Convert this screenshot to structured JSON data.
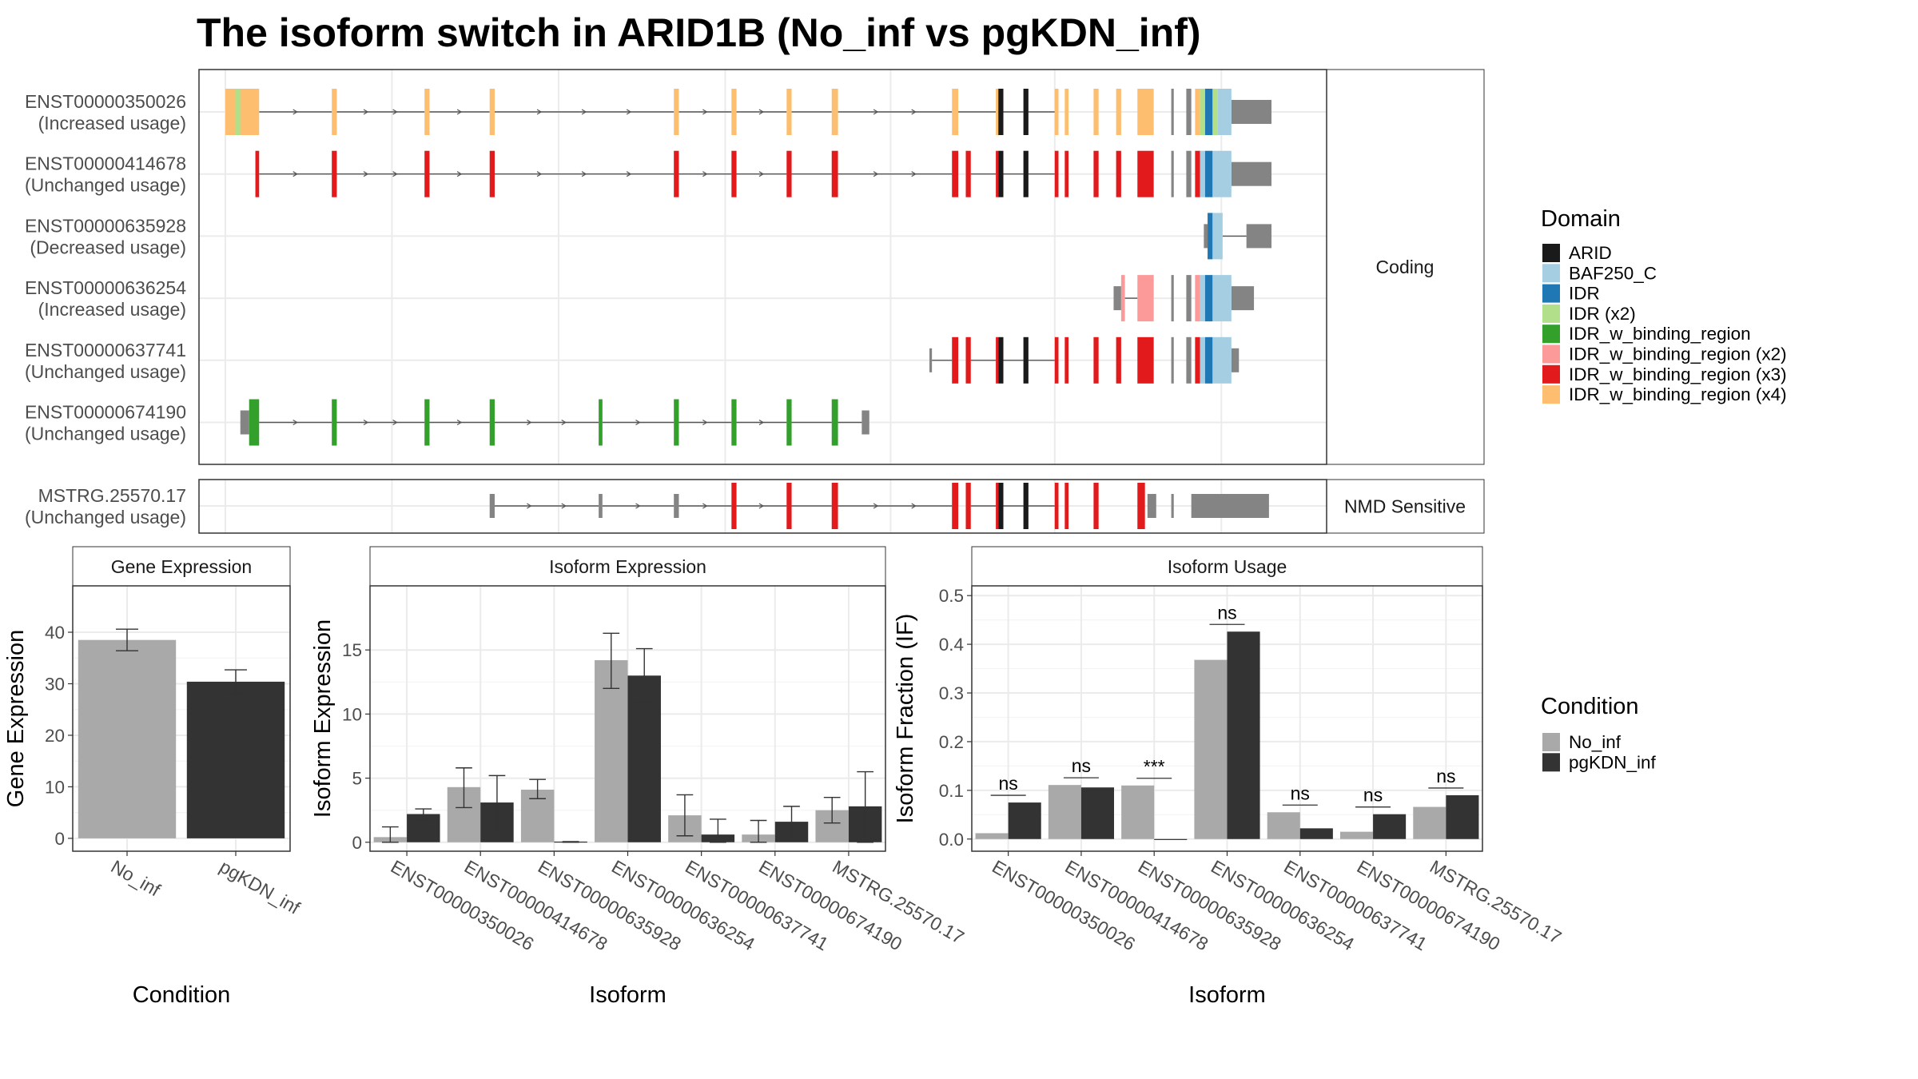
{
  "title": "The isoform switch in ARID1B (No_inf vs pgKDN_inf)",
  "colors": {
    "grid": "#ebebeb",
    "frame": "#333333",
    "strip_fill": "#ffffff",
    "utr": "#848484",
    "cond_no_inf": "#a9a9a9",
    "cond_pgkdn_inf": "#333333"
  },
  "chart_data": [
    {
      "type": "gene-structure",
      "panel_labels": [
        "Coding",
        "NMD Sensitive"
      ],
      "legend": {
        "title": "Domain",
        "items": [
          {
            "label": "ARID",
            "color": "#1a1a1a"
          },
          {
            "label": "BAF250_C",
            "color": "#a6cee3"
          },
          {
            "label": "IDR",
            "color": "#1f78b4"
          },
          {
            "label": "IDR (x2)",
            "color": "#b2df8a"
          },
          {
            "label": "IDR_w_binding_region",
            "color": "#33a02c"
          },
          {
            "label": "IDR_w_binding_region (x2)",
            "color": "#fb9a99"
          },
          {
            "label": "IDR_w_binding_region (x3)",
            "color": "#e31a1c"
          },
          {
            "label": "IDR_w_binding_region (x4)",
            "color": "#fdbf6f"
          }
        ]
      },
      "isoforms": [
        {
          "id": "ENST00000350026",
          "usage": "(Increased usage)",
          "panel": 0,
          "utr_exons": [
            [
              1004,
              1036
            ]
          ],
          "domain_exons": [
            [
              201,
              228,
              "#fdbf6f"
            ],
            [
              286,
              290,
              "#fdbf6f"
            ],
            [
              360,
              364,
              "#fdbf6f"
            ],
            [
              412,
              416,
              "#fdbf6f"
            ],
            [
              559,
              563,
              "#fdbf6f"
            ],
            [
              605,
              609,
              "#fdbf6f"
            ],
            [
              649,
              653,
              "#fdbf6f"
            ],
            [
              685,
              690,
              "#fdbf6f"
            ],
            [
              781,
              786,
              "#fdbf6f"
            ],
            [
              816,
              818,
              "#fdbf6f"
            ],
            [
              818,
              822,
              "#1a1a1a"
            ],
            [
              838,
              842,
              "#1a1a1a"
            ],
            [
              863,
              866,
              "#fdbf6f"
            ],
            [
              871,
              874,
              "#fdbf6f"
            ],
            [
              894,
              898,
              "#fdbf6f"
            ],
            [
              912,
              916,
              "#fdbf6f"
            ],
            [
              929,
              942,
              "#fdbf6f"
            ],
            [
              956,
              958,
              "#848484"
            ],
            [
              968,
              972,
              "#848484"
            ],
            [
              975,
              979,
              "#fdbf6f"
            ],
            [
              979,
              983,
              "#b2df8a"
            ],
            [
              983,
              989,
              "#1f78b4"
            ],
            [
              989,
              993,
              "#b2df8a"
            ],
            [
              993,
              1004,
              "#a6cee3"
            ],
            [
              209,
              213,
              "#b2df8a"
            ]
          ],
          "introns": [
            [
              228,
              286
            ],
            [
              290,
              360
            ],
            [
              364,
              412
            ],
            [
              416,
              559
            ],
            [
              563,
              605
            ],
            [
              609,
              649
            ],
            [
              653,
              685
            ],
            [
              690,
              781
            ],
            [
              786,
              816
            ],
            [
              822,
              838
            ],
            [
              842,
              863
            ]
          ]
        },
        {
          "id": "ENST00000414678",
          "usage": "(Unchanged usage)",
          "panel": 0,
          "utr_exons": [
            [
              1004,
              1036
            ]
          ],
          "domain_exons": [
            [
              225,
              228,
              "#e31a1c"
            ],
            [
              286,
              290,
              "#e31a1c"
            ],
            [
              360,
              364,
              "#e31a1c"
            ],
            [
              412,
              416,
              "#e31a1c"
            ],
            [
              559,
              563,
              "#e31a1c"
            ],
            [
              605,
              609,
              "#e31a1c"
            ],
            [
              649,
              653,
              "#e31a1c"
            ],
            [
              685,
              690,
              "#e31a1c"
            ],
            [
              781,
              786,
              "#e31a1c"
            ],
            [
              792,
              796,
              "#e31a1c"
            ],
            [
              816,
              818,
              "#e31a1c"
            ],
            [
              818,
              822,
              "#1a1a1a"
            ],
            [
              838,
              842,
              "#1a1a1a"
            ],
            [
              863,
              866,
              "#e31a1c"
            ],
            [
              871,
              874,
              "#e31a1c"
            ],
            [
              894,
              898,
              "#e31a1c"
            ],
            [
              912,
              916,
              "#e31a1c"
            ],
            [
              929,
              942,
              "#e31a1c"
            ],
            [
              956,
              958,
              "#848484"
            ],
            [
              968,
              972,
              "#848484"
            ],
            [
              975,
              979,
              "#e31a1c"
            ],
            [
              979,
              983,
              "#a6cee3"
            ],
            [
              983,
              989,
              "#1f78b4"
            ],
            [
              989,
              1004,
              "#a6cee3"
            ]
          ],
          "introns": [
            [
              228,
              286
            ],
            [
              290,
              360
            ],
            [
              364,
              412
            ],
            [
              416,
              559
            ],
            [
              563,
              605
            ],
            [
              609,
              649
            ],
            [
              653,
              685
            ],
            [
              690,
              781
            ],
            [
              796,
              816
            ],
            [
              822,
              838
            ],
            [
              842,
              863
            ]
          ]
        },
        {
          "id": "ENST00000635928",
          "usage": "(Decreased usage)",
          "panel": 0,
          "utr_exons": [
            [
              982,
              985
            ],
            [
              1016,
              1036
            ]
          ],
          "domain_exons": [
            [
              985,
              989,
              "#1f78b4"
            ],
            [
              989,
              997,
              "#a6cee3"
            ]
          ],
          "introns": [
            [
              997,
              1016
            ]
          ]
        },
        {
          "id": "ENST00000636254",
          "usage": "(Increased usage)",
          "panel": 0,
          "utr_exons": [
            [
              910,
              916
            ],
            [
              1004,
              1022
            ]
          ],
          "domain_exons": [
            [
              916,
              919,
              "#fb9a99"
            ],
            [
              929,
              942,
              "#fb9a99"
            ],
            [
              956,
              958,
              "#848484"
            ],
            [
              968,
              972,
              "#848484"
            ],
            [
              975,
              979,
              "#fb9a99"
            ],
            [
              979,
              983,
              "#a6cee3"
            ],
            [
              983,
              989,
              "#1f78b4"
            ],
            [
              989,
              1004,
              "#a6cee3"
            ]
          ],
          "introns": [
            [
              919,
              929
            ]
          ]
        },
        {
          "id": "ENST00000637741",
          "usage": "(Unchanged usage)",
          "panel": 0,
          "utr_exons": [
            [
              763,
              765
            ],
            [
              1004,
              1010
            ]
          ],
          "domain_exons": [
            [
              781,
              786,
              "#e31a1c"
            ],
            [
              792,
              796,
              "#e31a1c"
            ],
            [
              816,
              818,
              "#e31a1c"
            ],
            [
              818,
              822,
              "#1a1a1a"
            ],
            [
              838,
              842,
              "#1a1a1a"
            ],
            [
              863,
              866,
              "#e31a1c"
            ],
            [
              871,
              874,
              "#e31a1c"
            ],
            [
              894,
              898,
              "#e31a1c"
            ],
            [
              912,
              916,
              "#e31a1c"
            ],
            [
              929,
              942,
              "#e31a1c"
            ],
            [
              956,
              958,
              "#848484"
            ],
            [
              968,
              972,
              "#848484"
            ],
            [
              975,
              979,
              "#e31a1c"
            ],
            [
              979,
              983,
              "#a6cee3"
            ],
            [
              983,
              989,
              "#1f78b4"
            ],
            [
              989,
              1004,
              "#a6cee3"
            ]
          ],
          "introns": [
            [
              765,
              781
            ],
            [
              796,
              816
            ],
            [
              822,
              838
            ],
            [
              842,
              863
            ]
          ]
        },
        {
          "id": "ENST00000674190",
          "usage": "(Unchanged usage)",
          "panel": 0,
          "utr_exons": [
            [
              213,
              220
            ],
            [
              709,
              715
            ]
          ],
          "domain_exons": [
            [
              220,
              228,
              "#33a02c"
            ],
            [
              286,
              290,
              "#33a02c"
            ],
            [
              360,
              364,
              "#33a02c"
            ],
            [
              412,
              416,
              "#33a02c"
            ],
            [
              499,
              502,
              "#33a02c"
            ],
            [
              559,
              563,
              "#33a02c"
            ],
            [
              605,
              609,
              "#33a02c"
            ],
            [
              649,
              653,
              "#33a02c"
            ],
            [
              685,
              690,
              "#33a02c"
            ]
          ],
          "introns": [
            [
              228,
              286
            ],
            [
              290,
              360
            ],
            [
              364,
              412
            ],
            [
              416,
              499
            ],
            [
              502,
              559
            ],
            [
              563,
              605
            ],
            [
              609,
              649
            ],
            [
              653,
              685
            ],
            [
              690,
              709
            ]
          ]
        },
        {
          "id": "MSTRG.25570.17",
          "usage": "(Unchanged usage)",
          "panel": 1,
          "utr_exons": [
            [
              412,
              416
            ],
            [
              499,
              502
            ],
            [
              559,
              563
            ],
            [
              937,
              944
            ],
            [
              956,
              958
            ],
            [
              972,
              1034
            ]
          ],
          "domain_exons": [
            [
              605,
              609,
              "#e31a1c"
            ],
            [
              649,
              653,
              "#e31a1c"
            ],
            [
              685,
              690,
              "#e31a1c"
            ],
            [
              781,
              786,
              "#e31a1c"
            ],
            [
              792,
              796,
              "#e31a1c"
            ],
            [
              816,
              818,
              "#e31a1c"
            ],
            [
              818,
              822,
              "#1a1a1a"
            ],
            [
              838,
              842,
              "#1a1a1a"
            ],
            [
              863,
              866,
              "#e31a1c"
            ],
            [
              871,
              874,
              "#e31a1c"
            ],
            [
              894,
              898,
              "#e31a1c"
            ],
            [
              929,
              935,
              "#e31a1c"
            ]
          ],
          "introns": [
            [
              416,
              499
            ],
            [
              502,
              559
            ],
            [
              563,
              605
            ],
            [
              609,
              649
            ],
            [
              653,
              685
            ],
            [
              690,
              781
            ],
            [
              796,
              816
            ],
            [
              822,
              838
            ],
            [
              842,
              863
            ]
          ]
        }
      ]
    },
    {
      "type": "bar",
      "panel_title": "Gene Expression",
      "xlabel": "Condition",
      "ylabel": "Gene Expression",
      "ylim": [
        -2.5,
        49
      ],
      "yticks": [
        0,
        10,
        20,
        30,
        40
      ],
      "categories": [
        "No_inf",
        "pgKDN_inf"
      ],
      "values": [
        38.5,
        30.4
      ],
      "errors": [
        [
          36.4,
          40.6
        ],
        [
          28.0,
          32.7
        ]
      ],
      "colors": [
        "#a9a9a9",
        "#333333"
      ]
    },
    {
      "type": "bar",
      "panel_title": "Isoform Expression",
      "xlabel": "Isoform",
      "ylabel": "Isoform Expression",
      "ylim": [
        -0.7,
        20
      ],
      "yticks": [
        0,
        5,
        10,
        15
      ],
      "categories": [
        "ENST00000350026",
        "ENST00000414678",
        "ENST00000635928",
        "ENST00000636254",
        "ENST00000637741",
        "ENST00000674190",
        "MSTRG.25570.17"
      ],
      "series": [
        {
          "name": "No_inf",
          "color": "#a9a9a9",
          "values": [
            0.4,
            4.3,
            4.1,
            14.2,
            2.1,
            0.6,
            2.5
          ],
          "errors": [
            [
              0,
              1.2
            ],
            [
              2.7,
              5.8
            ],
            [
              3.4,
              4.9
            ],
            [
              12.0,
              16.3
            ],
            [
              0.5,
              3.7
            ],
            [
              0,
              1.7
            ],
            [
              1.5,
              3.5
            ]
          ]
        },
        {
          "name": "pgKDN_inf",
          "color": "#333333",
          "values": [
            2.2,
            3.1,
            0.05,
            13.0,
            0.6,
            1.6,
            2.8
          ],
          "errors": [
            [
              1.8,
              2.6
            ],
            [
              1.0,
              5.2
            ],
            [
              0,
              0.05
            ],
            [
              10.9,
              15.1
            ],
            [
              0,
              1.8
            ],
            [
              0.4,
              2.8
            ],
            [
              0,
              5.5
            ]
          ]
        }
      ]
    },
    {
      "type": "bar",
      "panel_title": "Isoform Usage",
      "xlabel": "Isoform",
      "ylabel": "Isoform Fraction (IF)",
      "ylim": [
        -0.025,
        0.52
      ],
      "yticks": [
        0.0,
        0.1,
        0.2,
        0.3,
        0.4,
        0.5
      ],
      "categories": [
        "ENST00000350026",
        "ENST00000414678",
        "ENST00000635928",
        "ENST00000636254",
        "ENST00000637741",
        "ENST00000674190",
        "MSTRG.25570.17"
      ],
      "series": [
        {
          "name": "No_inf",
          "color": "#a9a9a9",
          "values": [
            0.012,
            0.111,
            0.11,
            0.368,
            0.055,
            0.015,
            0.066
          ]
        },
        {
          "name": "pgKDN_inf",
          "color": "#333333",
          "values": [
            0.075,
            0.106,
            0.0,
            0.426,
            0.022,
            0.051,
            0.09
          ]
        }
      ],
      "significance": [
        "ns",
        "ns",
        "***",
        "ns",
        "ns",
        "ns",
        "ns"
      ]
    }
  ],
  "condition_legend": {
    "title": "Condition",
    "items": [
      {
        "label": "No_inf",
        "color": "#a9a9a9"
      },
      {
        "label": "pgKDN_inf",
        "color": "#333333"
      }
    ]
  }
}
